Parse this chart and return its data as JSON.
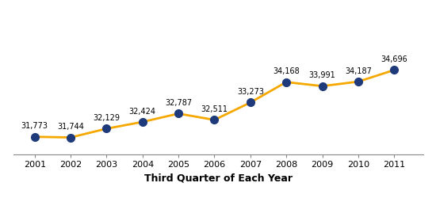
{
  "years": [
    2001,
    2002,
    2003,
    2004,
    2005,
    2006,
    2007,
    2008,
    2009,
    2010,
    2011
  ],
  "values": [
    31773,
    31744,
    32129,
    32424,
    32787,
    32511,
    33273,
    34168,
    33991,
    34187,
    34696
  ],
  "labels": [
    "31,773",
    "31,744",
    "32,129",
    "32,424",
    "32,787",
    "32,511",
    "33,273",
    "34,168",
    "33,991",
    "34,187",
    "34,696"
  ],
  "line_color": "#F5A800",
  "marker_color": "#1F3A7A",
  "marker_size": 7,
  "line_width": 2.0,
  "xlabel": "Third Quarter of Each Year",
  "xlabel_fontsize": 9,
  "label_fontsize": 7.0,
  "background_color": "#ffffff",
  "ylim": [
    31000,
    37500
  ],
  "xlim": [
    2000.4,
    2011.8
  ]
}
